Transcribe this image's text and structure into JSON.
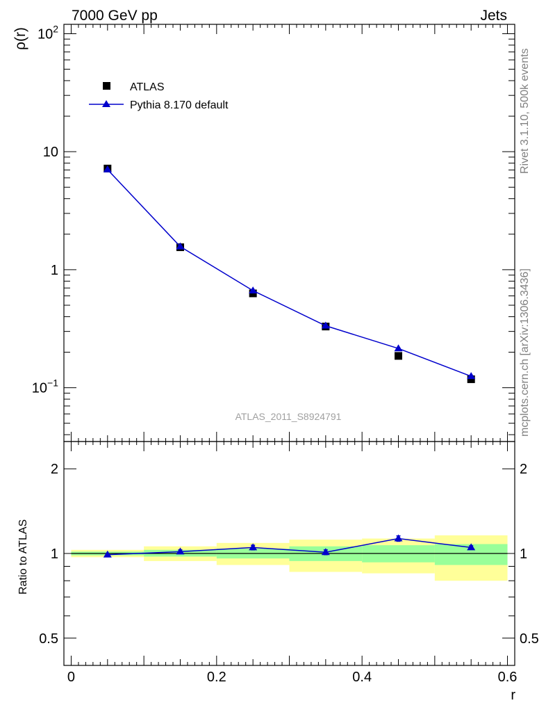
{
  "header": {
    "left": "7000 GeV pp",
    "right": "Jets"
  },
  "side_text": {
    "rivet": "Rivet 3.1.10,  500k events",
    "source": "mcplots.cern.ch [arXiv:1306.3436]"
  },
  "analysis_label": "ATLAS_2011_S8924791",
  "colors": {
    "data": "#000000",
    "mc": "#0000cc",
    "band_inner": "#99ff99",
    "band_outer": "#ffff99"
  },
  "chart_data": [
    {
      "type": "scatter",
      "ylabel": "ρ(r)",
      "yscale": "log",
      "ylim": [
        0.035,
        120
      ],
      "xlim": [
        -0.01,
        0.61
      ],
      "y_ticks": [
        {
          "v": 0.1,
          "base": "10",
          "exp": "−1"
        },
        {
          "v": 1,
          "base": "1",
          "exp": ""
        },
        {
          "v": 10,
          "base": "10",
          "exp": ""
        },
        {
          "v": 100,
          "base": "10",
          "exp": "2"
        }
      ],
      "legend": [
        "ATLAS",
        "Pythia 8.170 default"
      ],
      "legend_position": "top-left",
      "series": [
        {
          "name": "ATLAS",
          "marker": "square",
          "x": [
            0.05,
            0.15,
            0.25,
            0.35,
            0.45,
            0.55
          ],
          "y": [
            7.2,
            1.55,
            0.63,
            0.33,
            0.186,
            0.118
          ]
        },
        {
          "name": "Pythia 8.170 default",
          "marker": "triangle",
          "x": [
            0.05,
            0.15,
            0.25,
            0.35,
            0.45,
            0.55
          ],
          "y": [
            7.05,
            1.57,
            0.665,
            0.335,
            0.215,
            0.125
          ]
        }
      ]
    },
    {
      "type": "line",
      "ylabel": "Ratio to ATLAS",
      "xlabel": "r",
      "yscale": "log",
      "ylim": [
        0.4,
        2.5
      ],
      "xlim": [
        -0.01,
        0.61
      ],
      "y_ticks": [
        0.5,
        1,
        2
      ],
      "x_ticks": [
        0,
        0.2,
        0.4,
        0.6
      ],
      "x_tick_labels": [
        "0",
        "0.2",
        "0.4",
        "0.6"
      ],
      "band_bins": [
        {
          "x0": 0.0,
          "x1": 0.1,
          "inner": [
            0.985,
            1.015
          ],
          "outer": [
            0.97,
            1.03
          ]
        },
        {
          "x0": 0.1,
          "x1": 0.2,
          "inner": [
            0.975,
            1.03
          ],
          "outer": [
            0.94,
            1.06
          ]
        },
        {
          "x0": 0.2,
          "x1": 0.3,
          "inner": [
            0.96,
            1.04
          ],
          "outer": [
            0.91,
            1.09
          ]
        },
        {
          "x0": 0.3,
          "x1": 0.4,
          "inner": [
            0.94,
            1.06
          ],
          "outer": [
            0.86,
            1.12
          ]
        },
        {
          "x0": 0.4,
          "x1": 0.5,
          "inner": [
            0.93,
            1.07
          ],
          "outer": [
            0.85,
            1.13
          ]
        },
        {
          "x0": 0.5,
          "x1": 0.6,
          "inner": [
            0.91,
            1.08
          ],
          "outer": [
            0.8,
            1.16
          ]
        }
      ],
      "series": [
        {
          "name": "Pythia 8.170 default",
          "x": [
            0.05,
            0.15,
            0.25,
            0.35,
            0.45,
            0.55
          ],
          "y": [
            0.99,
            1.015,
            1.05,
            1.01,
            1.13,
            1.05
          ],
          "err": [
            0.0,
            0.015,
            0.02,
            0.02,
            0.025,
            0.015
          ]
        }
      ]
    }
  ]
}
